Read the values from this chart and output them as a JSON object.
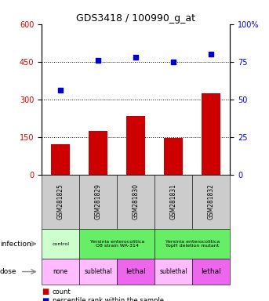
{
  "title": "GDS3418 / 100990_g_at",
  "samples": [
    "GSM281825",
    "GSM281829",
    "GSM281830",
    "GSM281831",
    "GSM281832"
  ],
  "counts": [
    120,
    175,
    235,
    145,
    325
  ],
  "percentiles": [
    56,
    76,
    78,
    75,
    80
  ],
  "ylim_left": [
    0,
    600
  ],
  "ylim_right": [
    0,
    100
  ],
  "yticks_left": [
    0,
    150,
    300,
    450,
    600
  ],
  "yticks_right": [
    0,
    25,
    50,
    75,
    100
  ],
  "bar_color": "#cc0000",
  "dot_color": "#0000cc",
  "left_axis_color": "#cc0000",
  "right_axis_color": "#0000cc",
  "plot_bg": "#ffffff",
  "sample_bg": "#cccccc",
  "infection_cells": [
    {
      "text": "control",
      "start": 0,
      "end": 1,
      "color": "#ccffcc"
    },
    {
      "text": "Yersinia enterocolitica\nO8 strain WA-314",
      "start": 1,
      "end": 3,
      "color": "#66ee66"
    },
    {
      "text": "Yersinia enterocolitica\nYopH deletion mutant",
      "start": 3,
      "end": 5,
      "color": "#66ee66"
    }
  ],
  "dose_cells": [
    {
      "text": "none",
      "start": 0,
      "end": 1,
      "color": "#ffbbff"
    },
    {
      "text": "sublethal",
      "start": 1,
      "end": 2,
      "color": "#ffbbff"
    },
    {
      "text": "lethal",
      "start": 2,
      "end": 3,
      "color": "#ee66ee"
    },
    {
      "text": "sublethal",
      "start": 3,
      "end": 4,
      "color": "#ffbbff"
    },
    {
      "text": "lethal",
      "start": 4,
      "end": 5,
      "color": "#ee66ee"
    }
  ]
}
